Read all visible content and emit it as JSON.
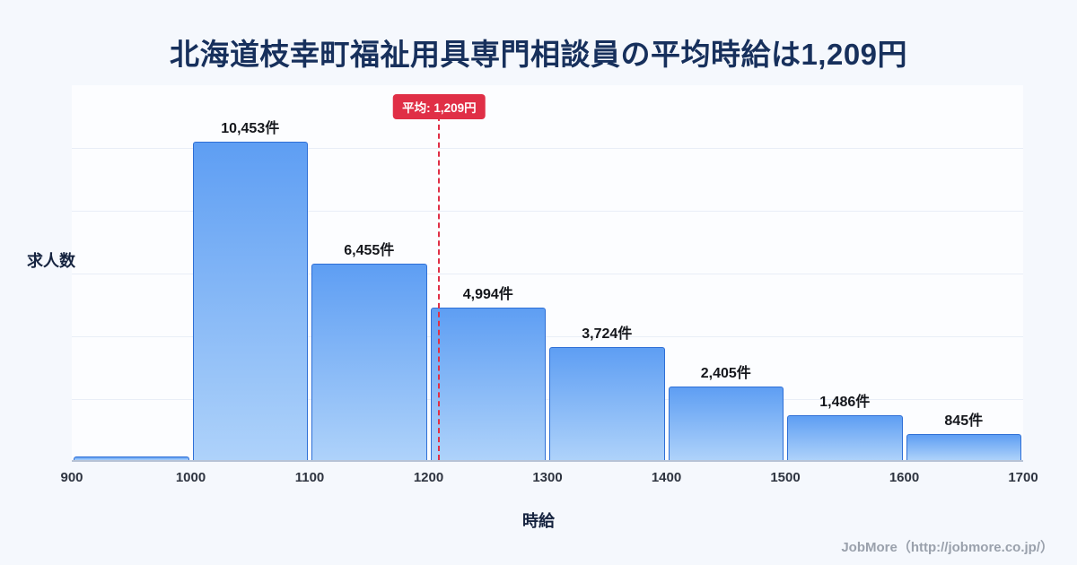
{
  "title": "北海道枝幸町福祉用具専門相談員の平均時給は1,209円",
  "footer": {
    "credit": "JobMore（http://jobmore.co.jp/）"
  },
  "chart_data": {
    "type": "bar",
    "subtype": "histogram",
    "title": "北海道枝幸町福祉用具専門相談員の平均時給は1,209円",
    "xlabel": "時給",
    "ylabel": "求人数",
    "x_range": [
      900,
      1700
    ],
    "x_ticks": [
      "900",
      "1000",
      "1100",
      "1200",
      "1300",
      "1400",
      "1500",
      "1600",
      "1700"
    ],
    "bins": [
      {
        "x0": 900,
        "x1": 1000,
        "count": 0,
        "label": ""
      },
      {
        "x0": 1000,
        "x1": 1100,
        "count": 10453,
        "label": "10,453件"
      },
      {
        "x0": 1100,
        "x1": 1200,
        "count": 6455,
        "label": "6,455件"
      },
      {
        "x0": 1200,
        "x1": 1300,
        "count": 4994,
        "label": "4,994件"
      },
      {
        "x0": 1300,
        "x1": 1400,
        "count": 3724,
        "label": "3,724件"
      },
      {
        "x0": 1400,
        "x1": 1500,
        "count": 2405,
        "label": "2,405件"
      },
      {
        "x0": 1500,
        "x1": 1600,
        "count": 1486,
        "label": "1,486件"
      },
      {
        "x0": 1600,
        "x1": 1700,
        "count": 845,
        "label": "845件"
      }
    ],
    "mean": 1209,
    "mean_label": "平均: 1,209円",
    "grid": true,
    "colors": {
      "background": "#f5f8fd",
      "bar_fill_top": "#5e9ef3",
      "bar_fill_bottom": "#aed2fa",
      "bar_border": "#2e6fd6",
      "mean_line": "#e02f46",
      "title_text": "#17305c"
    }
  }
}
